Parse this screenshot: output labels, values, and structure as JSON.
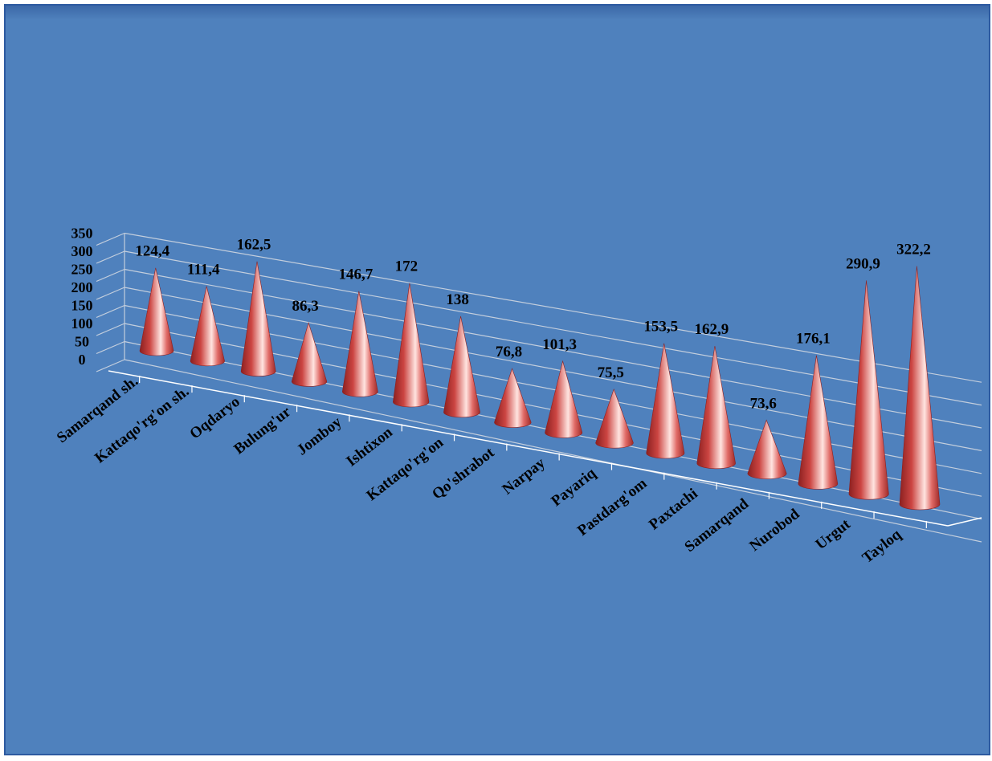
{
  "chart_data": {
    "type": "bar",
    "style": "3d-cone",
    "categories": [
      "Samarqand sh.",
      "Kattaqo'rg'on sh.",
      "Oqdaryo",
      "Bulung'ur",
      "Jomboy",
      "Ishtixon",
      "Kattaqo'rg'on",
      "Qo'shrabot",
      "Narpay",
      "Payariq",
      "Pastdarg'om",
      "Paxtachi",
      "Samarqand",
      "Nurobod",
      "Urgut",
      "Tayloq"
    ],
    "values": [
      124.4,
      111.4,
      162.5,
      86.3,
      146.7,
      172,
      138,
      76.8,
      101.3,
      75.5,
      153.5,
      162.9,
      73.6,
      176.1,
      290.9,
      322.2
    ],
    "value_labels": [
      "124,4",
      "111,4",
      "162,5",
      "86,3",
      "146,7",
      "172",
      "138",
      "76,8",
      "101,3",
      "75,5",
      "153,5",
      "162,9",
      "73,6",
      "176,1",
      "290,9",
      "322,2"
    ],
    "y_ticks": [
      "0",
      "50",
      "100",
      "150",
      "200",
      "250",
      "300",
      "350"
    ],
    "ylim": [
      0,
      350
    ],
    "grid": true,
    "legend": "none",
    "colors": {
      "background": "#4f81bd",
      "cone_dark": "#8c2020",
      "cone_mid": "#d9504e",
      "cone_light": "#ffe4e0",
      "grid": "#c3cedd",
      "axis": "#ffffff"
    }
  }
}
